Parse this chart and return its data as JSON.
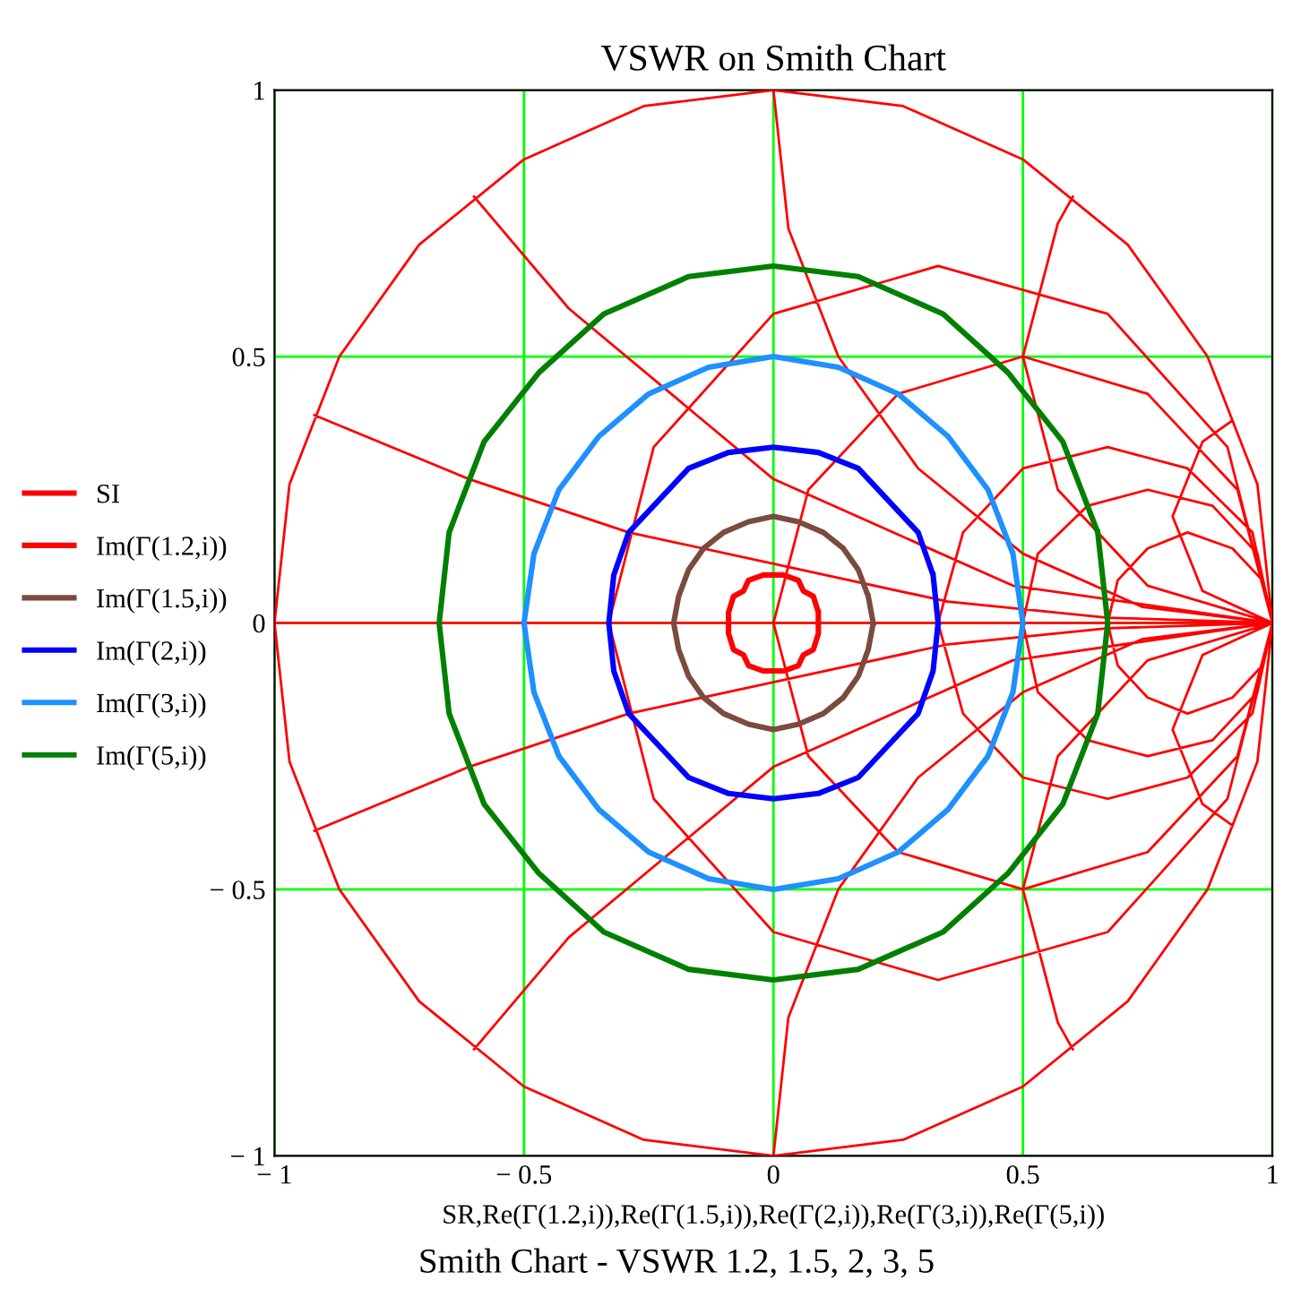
{
  "chart_data": {
    "type": "line",
    "title": "VSWR on Smith Chart",
    "xlabel": "SR,Re(Γ(1.2,i)),Re(Γ(1.5,i)),Re(Γ(2,i)),Re(Γ(3,i)),Re(Γ(5,i))",
    "annotations": [
      "Smith Chart - VSWR 1.2, 1.5, 2, 3, 5"
    ],
    "xlim": [
      -1,
      1
    ],
    "ylim": [
      -1,
      1
    ],
    "xticks": [
      {
        "value": -1,
        "label": "− 1"
      },
      {
        "value": -0.5,
        "label": "− 0.5"
      },
      0,
      0.5,
      1
    ],
    "yticks": [
      {
        "value": -1,
        "label": "− 1"
      },
      {
        "value": -0.5,
        "label": "− 0.5"
      },
      0,
      0.5,
      1
    ],
    "grid": true,
    "legend": "left",
    "marker": "none",
    "line_style": "solid",
    "series": [
      {
        "name": "SI",
        "color": "#ff0000",
        "x": [
          1,
          0.97,
          0.87,
          0.71,
          0.5,
          0.26,
          0,
          -0.26,
          -0.5,
          -0.71,
          -0.87,
          -0.97,
          -1,
          -0.97,
          -0.87,
          -0.71,
          -0.5,
          -0.26,
          0,
          0.26,
          0.5,
          0.71,
          0.87,
          0.97,
          1,
          0.97,
          null,
          -1,
          1,
          null,
          1,
          0.91,
          0.67,
          0.33,
          0,
          -0.24,
          -0.33,
          -0.24,
          0,
          0.33,
          0.67,
          0.91,
          1,
          0.91,
          null,
          1,
          0.93,
          0.75,
          0.5,
          0.25,
          0.07,
          0,
          0.07,
          0.25,
          0.5,
          0.75,
          0.93,
          1,
          0.93,
          null,
          1,
          0.96,
          0.83,
          0.67,
          0.5,
          0.38,
          0.33,
          0.38,
          0.5,
          0.67,
          0.83,
          0.96,
          1,
          0.96,
          null,
          1,
          0.97,
          0.88,
          0.75,
          0.63,
          0.53,
          0.5,
          0.53,
          0.63,
          0.75,
          0.88,
          0.97,
          1,
          0.97,
          null,
          1,
          0.98,
          0.92,
          0.83,
          0.75,
          0.69,
          0.67,
          0.69,
          0.75,
          0.83,
          0.92,
          0.98,
          1,
          0.98,
          null,
          1,
          0.74,
          0.5,
          0.29,
          0.13,
          0.03,
          0,
          null,
          1,
          0.74,
          0.5,
          0.29,
          0.13,
          0.03,
          0,
          null,
          1,
          0.48,
          0,
          -0.41,
          -0.6,
          null,
          1,
          0.48,
          0,
          -0.41,
          -0.6,
          null,
          1,
          0.67,
          0.35,
          -0.29,
          -0.61,
          -0.92,
          null,
          1,
          0.67,
          0.35,
          -0.29,
          -0.61,
          -0.92,
          null,
          1,
          0.75,
          0.57,
          0.5,
          0.57,
          0.6,
          null,
          1,
          0.75,
          0.57,
          0.5,
          0.57,
          0.6,
          null,
          1,
          0.86,
          0.8,
          0.86,
          0.92,
          null,
          1,
          0.86,
          0.8,
          0.86,
          0.92
        ],
        "values": [
          0,
          0.26,
          0.5,
          0.71,
          0.87,
          0.97,
          1,
          0.97,
          0.87,
          0.71,
          0.5,
          0.26,
          0,
          -0.26,
          -0.5,
          -0.71,
          -0.87,
          -0.97,
          -1,
          -0.97,
          -0.87,
          -0.71,
          -0.5,
          -0.26,
          0,
          0.26,
          null,
          0,
          0,
          null,
          0,
          0.33,
          0.58,
          0.67,
          0.58,
          0.33,
          0,
          -0.33,
          -0.58,
          -0.67,
          -0.58,
          -0.33,
          0,
          0.33,
          null,
          0,
          0.25,
          0.43,
          0.5,
          0.43,
          0.25,
          0,
          -0.25,
          -0.43,
          -0.5,
          -0.43,
          -0.25,
          0,
          0.25,
          null,
          0,
          0.17,
          0.29,
          0.33,
          0.29,
          0.17,
          0,
          -0.17,
          -0.29,
          -0.33,
          -0.29,
          -0.17,
          0,
          0.17,
          null,
          0,
          0.13,
          0.22,
          0.25,
          0.22,
          0.13,
          0,
          -0.13,
          -0.22,
          -0.25,
          -0.22,
          -0.13,
          0,
          0.13,
          null,
          0,
          0.08,
          0.14,
          0.17,
          0.14,
          0.08,
          0,
          -0.08,
          -0.14,
          -0.17,
          -0.14,
          -0.08,
          0,
          0.08,
          null,
          0,
          0.03,
          0.13,
          0.29,
          0.5,
          0.74,
          1,
          null,
          0,
          -0.03,
          -0.13,
          -0.29,
          -0.5,
          -0.74,
          -1,
          null,
          0,
          0.07,
          0.27,
          0.59,
          0.8,
          null,
          0,
          -0.07,
          -0.27,
          -0.59,
          -0.8,
          null,
          0,
          0.01,
          0.04,
          0.17,
          0.27,
          0.39,
          null,
          0,
          -0.01,
          -0.04,
          -0.17,
          -0.27,
          -0.39,
          null,
          0,
          0.07,
          0.25,
          0.5,
          0.75,
          0.8,
          null,
          0,
          -0.07,
          -0.25,
          -0.5,
          -0.75,
          -0.8,
          null,
          0,
          0.06,
          0.2,
          0.34,
          0.38,
          null,
          0,
          -0.06,
          -0.2,
          -0.34,
          -0.38
        ]
      },
      {
        "name": "Im(Γ(1.2,i))",
        "color": "#ff0000",
        "x": [
          0.09,
          0.09,
          0.08,
          0.06,
          0.05,
          0.02,
          0,
          -0.02,
          -0.05,
          -0.06,
          -0.08,
          -0.09,
          -0.09,
          -0.09,
          -0.08,
          -0.06,
          -0.05,
          -0.02,
          0,
          0.02,
          0.05,
          0.06,
          0.08,
          0.09,
          0.09,
          0.09
        ],
        "values": [
          0,
          0.02,
          0.05,
          0.06,
          0.08,
          0.09,
          0.09,
          0.09,
          0.08,
          0.06,
          0.05,
          0.02,
          0,
          -0.02,
          -0.05,
          -0.06,
          -0.08,
          -0.09,
          -0.09,
          -0.09,
          -0.08,
          -0.06,
          -0.05,
          -0.02,
          0,
          0.02
        ]
      },
      {
        "name": "Im(Γ(1.5,i))",
        "color": "#7b4b40",
        "x": [
          0.2,
          0.19,
          0.17,
          0.14,
          0.1,
          0.05,
          0,
          -0.05,
          -0.1,
          -0.14,
          -0.17,
          -0.19,
          -0.2,
          -0.19,
          -0.17,
          -0.14,
          -0.1,
          -0.05,
          0,
          0.05,
          0.1,
          0.14,
          0.17,
          0.19,
          0.2,
          0.19
        ],
        "values": [
          0,
          0.05,
          0.1,
          0.14,
          0.17,
          0.19,
          0.2,
          0.19,
          0.17,
          0.14,
          0.1,
          0.05,
          0,
          -0.05,
          -0.1,
          -0.14,
          -0.17,
          -0.19,
          -0.2,
          -0.19,
          -0.17,
          -0.14,
          -0.1,
          -0.05,
          0,
          0.05
        ]
      },
      {
        "name": "Im(Γ(2,i))",
        "color": "#0000ff",
        "x": [
          0.33,
          0.32,
          0.29,
          0.23,
          0.17,
          0.09,
          0,
          -0.09,
          -0.17,
          -0.23,
          -0.29,
          -0.32,
          -0.33,
          -0.32,
          -0.29,
          -0.23,
          -0.17,
          -0.09,
          0,
          0.09,
          0.17,
          0.23,
          0.29,
          0.32,
          0.33,
          0.32
        ],
        "values": [
          0,
          0.09,
          0.17,
          0.23,
          0.29,
          0.32,
          0.33,
          0.32,
          0.29,
          0.23,
          0.17,
          0.09,
          0,
          -0.09,
          -0.17,
          -0.23,
          -0.29,
          -0.32,
          -0.33,
          -0.32,
          -0.29,
          -0.23,
          -0.17,
          -0.09,
          0,
          0.09
        ]
      },
      {
        "name": "Im(Γ(3,i))",
        "color": "#1e90ff",
        "x": [
          0.5,
          0.48,
          0.43,
          0.35,
          0.25,
          0.13,
          0,
          -0.13,
          -0.25,
          -0.35,
          -0.43,
          -0.48,
          -0.5,
          -0.48,
          -0.43,
          -0.35,
          -0.25,
          -0.13,
          0,
          0.13,
          0.25,
          0.35,
          0.43,
          0.48,
          0.5,
          0.48
        ],
        "values": [
          0,
          0.13,
          0.25,
          0.35,
          0.43,
          0.48,
          0.5,
          0.48,
          0.43,
          0.35,
          0.25,
          0.13,
          0,
          -0.13,
          -0.25,
          -0.35,
          -0.43,
          -0.48,
          -0.5,
          -0.48,
          -0.43,
          -0.35,
          -0.25,
          -0.13,
          0,
          0.13
        ]
      },
      {
        "name": "Im(Γ(5,i))",
        "color": "#008000",
        "x": [
          0.67,
          0.65,
          0.58,
          0.47,
          0.34,
          0.17,
          0,
          -0.17,
          -0.34,
          -0.47,
          -0.58,
          -0.65,
          -0.67,
          -0.65,
          -0.58,
          -0.47,
          -0.34,
          -0.17,
          0,
          0.17,
          0.34,
          0.47,
          0.58,
          0.65,
          0.67,
          0.65
        ],
        "values": [
          0,
          0.17,
          0.34,
          0.47,
          0.58,
          0.65,
          0.67,
          0.65,
          0.58,
          0.47,
          0.34,
          0.17,
          0,
          -0.17,
          -0.34,
          -0.47,
          -0.58,
          -0.65,
          -0.67,
          -0.65,
          -0.58,
          -0.47,
          -0.34,
          -0.17,
          0,
          0.17
        ]
      }
    ]
  }
}
